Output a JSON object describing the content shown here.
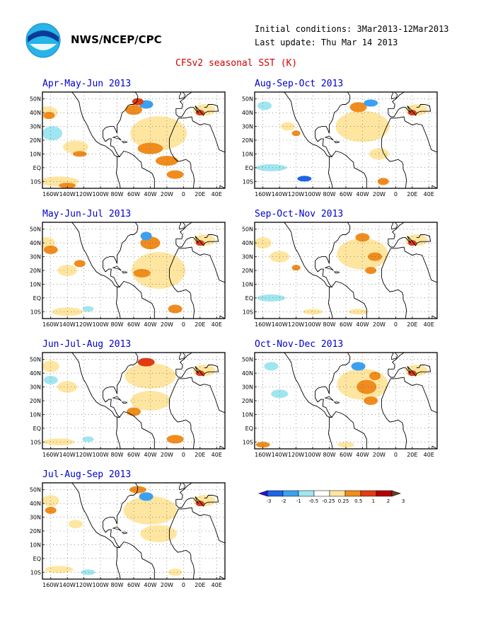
{
  "header": {
    "org": "NWS/NCEP/CPC",
    "initial_conditions": "Initial conditions: 3Mar2013-12Mar2013",
    "last_update": "Last update: Thu Mar 14 2013",
    "title": "CFSv2 seasonal SST (K)"
  },
  "axes": {
    "lat_labels": [
      "50N",
      "40N",
      "30N",
      "20N",
      "10N",
      "EQ",
      "10S"
    ],
    "lon_labels": [
      "160W",
      "140W",
      "120W",
      "100W",
      "80W",
      "60W",
      "40W",
      "20W",
      "0",
      "20E",
      "40E"
    ]
  },
  "panels": [
    {
      "title": "Apr-May-Jun 2013"
    },
    {
      "title": "Aug-Sep-Oct 2013"
    },
    {
      "title": "May-Jun-Jul 2013"
    },
    {
      "title": "Sep-Oct-Nov 2013"
    },
    {
      "title": "Jun-Jul-Aug 2013"
    },
    {
      "title": "Oct-Nov-Dec 2013"
    },
    {
      "title": "Jul-Aug-Sep 2013"
    }
  ],
  "colorbar": {
    "labels": [
      "-3",
      "-2",
      "-1",
      "-0.5",
      "-0.25",
      "0.25",
      "0.5",
      "1",
      "2",
      "3"
    ],
    "colors": [
      "#2a14d8",
      "#1e64e6",
      "#3ca0f0",
      "#a0e6f0",
      "#ffffff",
      "#ffe6a0",
      "#f08c1e",
      "#e03c14",
      "#b40000",
      "#6e3c28"
    ],
    "end_low": "#2a14d8",
    "end_high": "#6e3c28"
  }
}
